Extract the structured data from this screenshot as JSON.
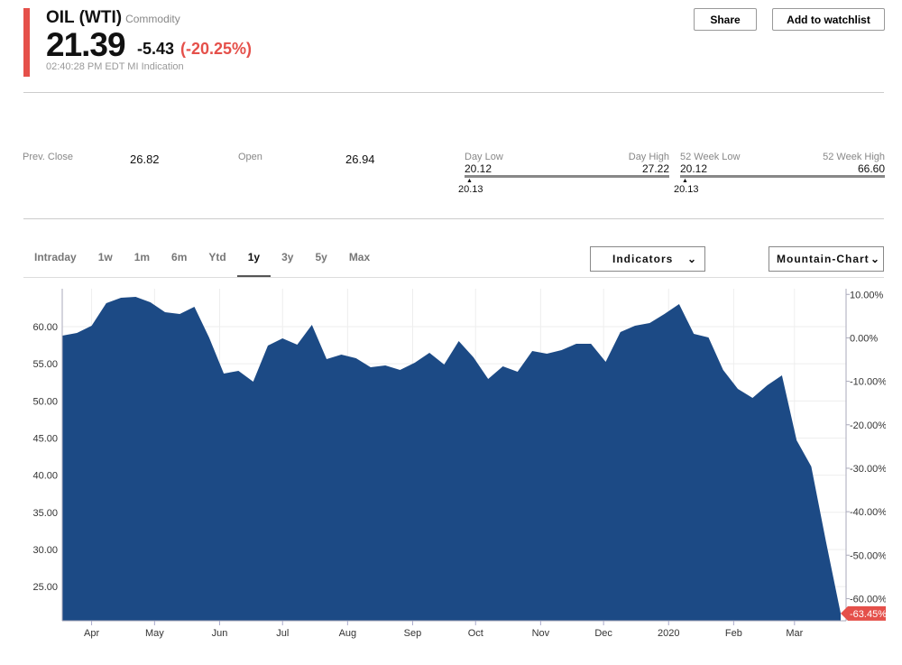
{
  "header": {
    "name": "OIL (WTI)",
    "type": "Commodity",
    "price": "21.39",
    "change": "-5.43",
    "change_pct": "(-20.25%)",
    "timestamp": "02:40:28 PM EDT MI Indication",
    "share_label": "Share",
    "watchlist_label": "Add to watchlist"
  },
  "stats": {
    "prev_close_label": "Prev. Close",
    "prev_close": "26.82",
    "open_label": "Open",
    "open": "26.94",
    "day_low_label": "Day Low",
    "day_high_label": "Day High",
    "day_low": "20.12",
    "day_high": "27.22",
    "day_current": "20.13",
    "wk52_low_label": "52 Week Low",
    "wk52_high_label": "52 Week High",
    "wk52_low": "20.12",
    "wk52_high": "66.60",
    "wk52_current": "20.13"
  },
  "tabs": [
    {
      "label": "Intraday"
    },
    {
      "label": "1w"
    },
    {
      "label": "1m"
    },
    {
      "label": "6m"
    },
    {
      "label": "Ytd"
    },
    {
      "label": "1y",
      "active": true
    },
    {
      "label": "3y"
    },
    {
      "label": "5y"
    },
    {
      "label": "Max"
    }
  ],
  "controls": {
    "indicators": "Indicators",
    "chart_type": "Mountain-Chart"
  },
  "colors": {
    "area": "#1c4a85",
    "negative": "#e5504a"
  },
  "chart_data": {
    "type": "area",
    "x_ticks": [
      "Apr",
      "May",
      "Jun",
      "Jul",
      "Aug",
      "Sep",
      "Oct",
      "Nov",
      "Dec",
      "2020",
      "Feb",
      "Mar"
    ],
    "x_tick_dates": [
      "2019-04-01",
      "2019-05-01",
      "2019-06-01",
      "2019-07-01",
      "2019-08-01",
      "2019-09-01",
      "2019-10-01",
      "2019-11-01",
      "2019-12-01",
      "2020-01-01",
      "2020-02-01",
      "2020-03-01"
    ],
    "y_ticks": [
      "60.00",
      "55.00",
      "50.00",
      "45.00",
      "40.00",
      "35.00",
      "30.00",
      "25.00"
    ],
    "y_tick_values": [
      60,
      55,
      50,
      45,
      40,
      35,
      30,
      25
    ],
    "y2_ticks": [
      "10.00%",
      "0.00%",
      "-10.00%",
      "-20.00%",
      "-30.00%",
      "-40.00%",
      "-50.00%",
      "-60.00%"
    ],
    "y2_tick_values": [
      10,
      0,
      -10,
      -20,
      -30,
      -40,
      -50,
      -60
    ],
    "ylim": [
      20.4,
      65.1
    ],
    "y2lim": [
      -65.1,
      11.3
    ],
    "grid": true,
    "last_change_label": "-63.45%",
    "x": [
      "2019-03-18",
      "2019-03-25",
      "2019-04-01",
      "2019-04-08",
      "2019-04-15",
      "2019-04-22",
      "2019-04-29",
      "2019-05-06",
      "2019-05-13",
      "2019-05-20",
      "2019-05-27",
      "2019-06-03",
      "2019-06-10",
      "2019-06-17",
      "2019-06-24",
      "2019-07-01",
      "2019-07-08",
      "2019-07-15",
      "2019-07-22",
      "2019-07-29",
      "2019-08-05",
      "2019-08-12",
      "2019-08-19",
      "2019-08-26",
      "2019-09-02",
      "2019-09-09",
      "2019-09-16",
      "2019-09-23",
      "2019-09-30",
      "2019-10-07",
      "2019-10-14",
      "2019-10-21",
      "2019-10-28",
      "2019-11-04",
      "2019-11-11",
      "2019-11-18",
      "2019-11-25",
      "2019-12-02",
      "2019-12-09",
      "2019-12-16",
      "2019-12-23",
      "2019-12-30",
      "2020-01-06",
      "2020-01-13",
      "2020-01-20",
      "2020-01-27",
      "2020-02-03",
      "2020-02-10",
      "2020-02-17",
      "2020-02-24",
      "2020-03-02",
      "2020-03-09",
      "2020-03-16",
      "2020-03-23"
    ],
    "values": [
      58.78,
      59.15,
      60.12,
      63.16,
      63.89,
      64.01,
      63.28,
      61.94,
      61.7,
      62.67,
      58.54,
      53.68,
      54.05,
      52.59,
      57.45,
      58.42,
      57.57,
      60.24,
      55.63,
      56.23,
      55.75,
      54.53,
      54.78,
      54.17,
      55.14,
      56.48,
      54.9,
      58.06,
      55.87,
      52.95,
      54.65,
      53.92,
      56.72,
      56.35,
      56.84,
      57.69,
      57.69,
      55.26,
      59.27,
      60.12,
      60.49,
      61.7,
      63.04,
      59.03,
      58.54,
      54.17,
      51.62,
      50.4,
      52.1,
      53.44,
      44.69,
      41.17,
      31.08,
      21.39
    ]
  }
}
